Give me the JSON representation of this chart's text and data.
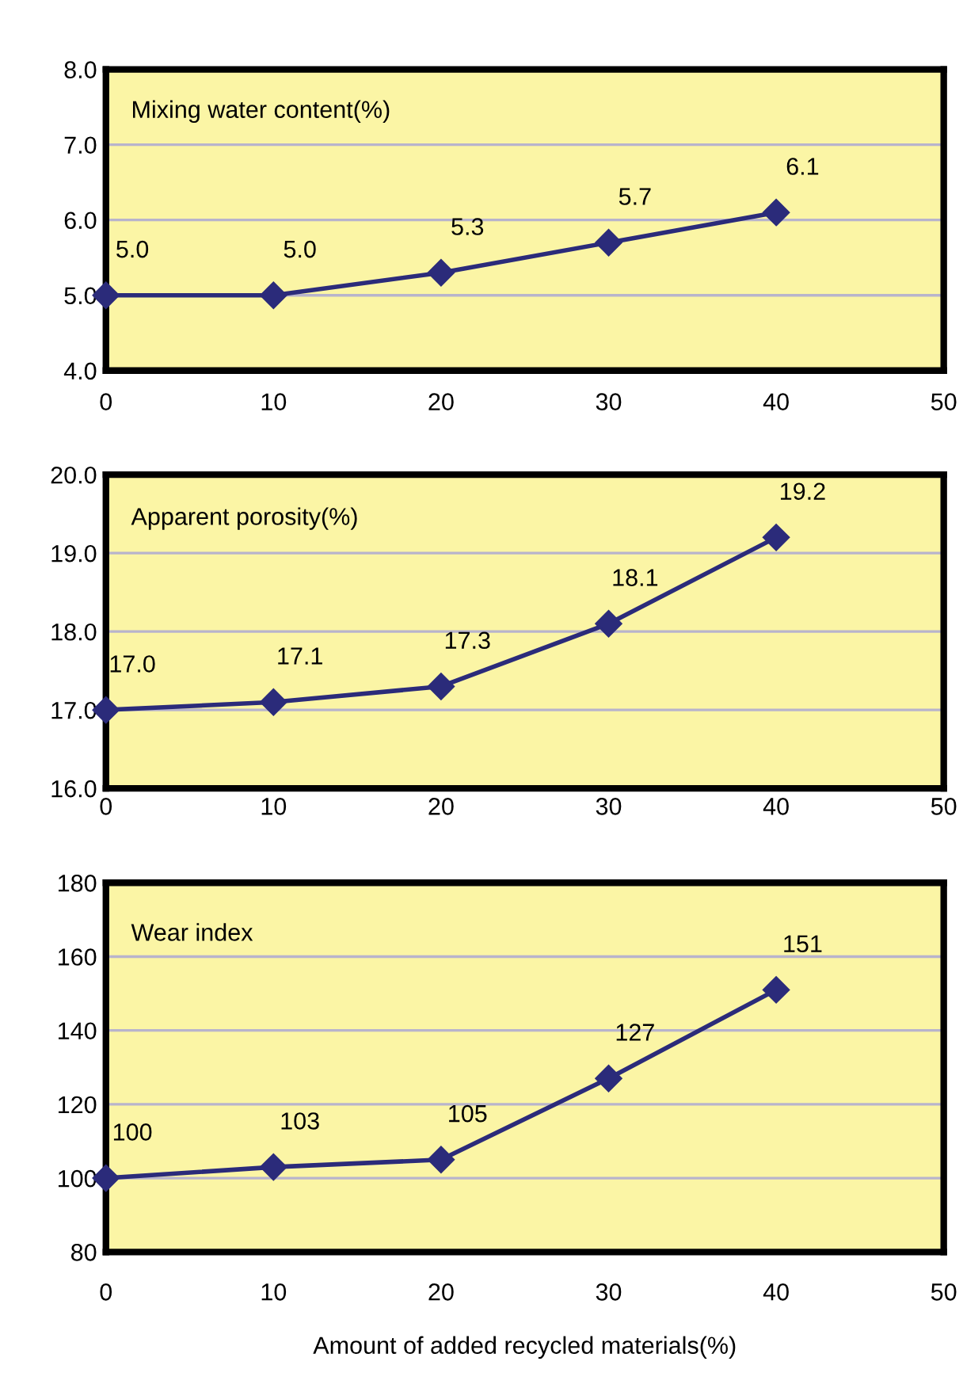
{
  "chart_data": [
    {
      "type": "line",
      "title": "Mixing water content(%)",
      "x": [
        0,
        10,
        20,
        30,
        40
      ],
      "series": [
        {
          "color": "#2b2b7a",
          "values": [
            5.0,
            5.0,
            5.3,
            5.7,
            6.1
          ],
          "value_labels": [
            "5.0",
            "5.0",
            "5.3",
            "5.7",
            "6.1"
          ]
        }
      ],
      "xlim": [
        0,
        50
      ],
      "xticks": [
        0,
        10,
        20,
        30,
        40,
        50
      ],
      "ylim": [
        4,
        8
      ],
      "yticks": [
        {
          "value": 4,
          "label": "4.0"
        },
        {
          "value": 5,
          "label": "5.0"
        },
        {
          "value": 6,
          "label": "6.0"
        },
        {
          "value": 7,
          "label": "7.0"
        },
        {
          "value": 8,
          "label": "8.0"
        }
      ],
      "grid": "y",
      "marker": "diamond",
      "line_style": "solid"
    },
    {
      "type": "line",
      "title": "Apparent porosity(%)",
      "x": [
        0,
        10,
        20,
        30,
        40
      ],
      "series": [
        {
          "color": "#2b2b7a",
          "values": [
            17.0,
            17.1,
            17.3,
            18.1,
            19.2
          ],
          "value_labels": [
            "17.0",
            "17.1",
            "17.3",
            "18.1",
            "19.2"
          ]
        }
      ],
      "xlim": [
        0,
        50
      ],
      "xticks": [
        0,
        10,
        20,
        30,
        40,
        50
      ],
      "ylim": [
        16,
        20
      ],
      "yticks": [
        {
          "value": 16,
          "label": "16.0"
        },
        {
          "value": 17,
          "label": "17.0"
        },
        {
          "value": 18,
          "label": "18.0"
        },
        {
          "value": 19,
          "label": "19.0"
        },
        {
          "value": 20,
          "label": "20.0"
        }
      ],
      "grid": "y",
      "marker": "diamond",
      "line_style": "solid"
    },
    {
      "type": "line",
      "title": "Wear index",
      "xlabel": "Amount of added recycled materials(%)",
      "x": [
        0,
        10,
        20,
        30,
        40
      ],
      "series": [
        {
          "color": "#2b2b7a",
          "values": [
            100,
            103,
            105,
            127,
            151
          ],
          "value_labels": [
            "100",
            "103",
            "105",
            "127",
            "151"
          ]
        }
      ],
      "xlim": [
        0,
        50
      ],
      "xticks": [
        0,
        10,
        20,
        30,
        40,
        50
      ],
      "ylim": [
        80,
        180
      ],
      "yticks": [
        80,
        100,
        120,
        140,
        160,
        180
      ],
      "grid": "y",
      "marker": "diamond",
      "line_style": "solid"
    }
  ]
}
